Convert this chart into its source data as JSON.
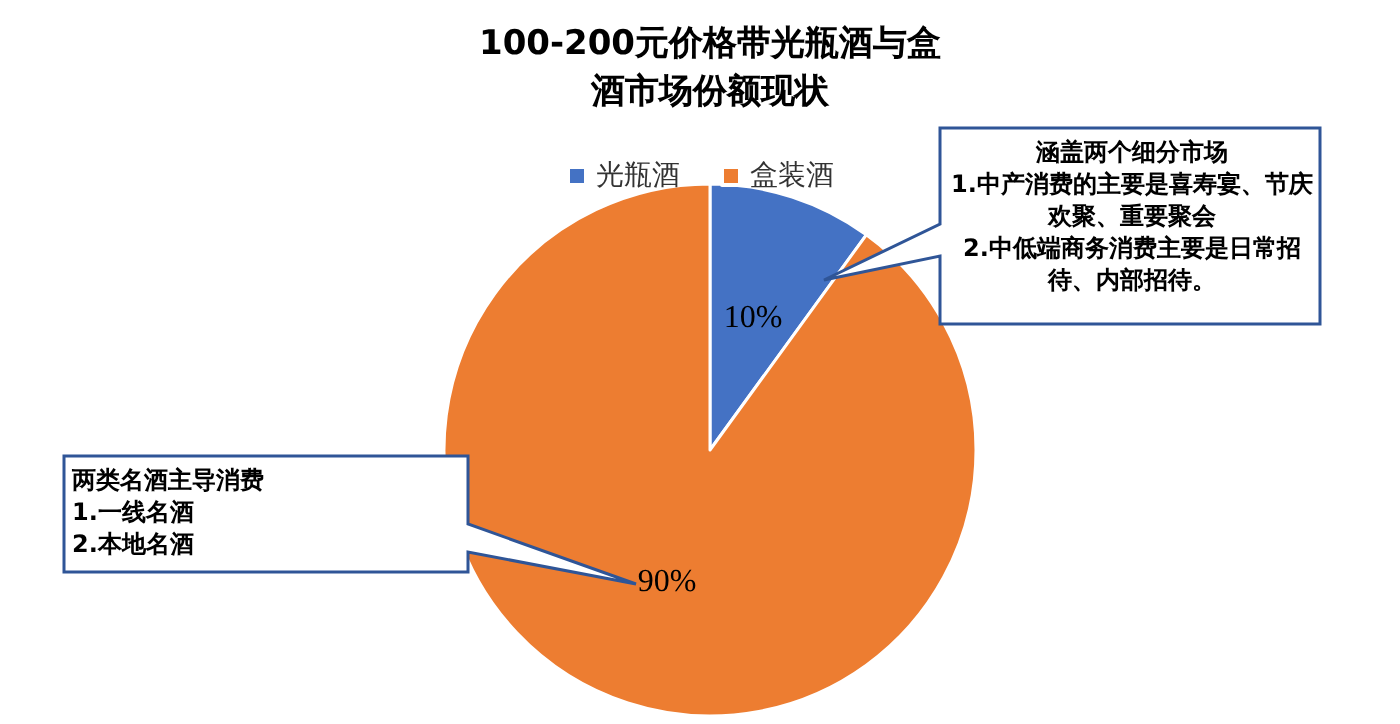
{
  "chart_data": {
    "type": "pie",
    "title": "100-200元价格带光瓶酒与盒酒市场份额现状",
    "categories": [
      "光瓶酒",
      "盒装酒"
    ],
    "values": [
      10,
      90
    ],
    "colors": [
      "#4472c4",
      "#ed7d31"
    ],
    "value_labels": [
      "10%",
      "90%"
    ],
    "legend": "top",
    "annotations": [
      "涵盖两个细分市场\n1.中产消费的主要是喜寿宴、节庆欢聚、重要聚会\n2.中低端商务消费主要是日常招待、内部招待。",
      "两类名酒主导消费\n1.一线名酒\n2.本地名酒"
    ]
  }
}
